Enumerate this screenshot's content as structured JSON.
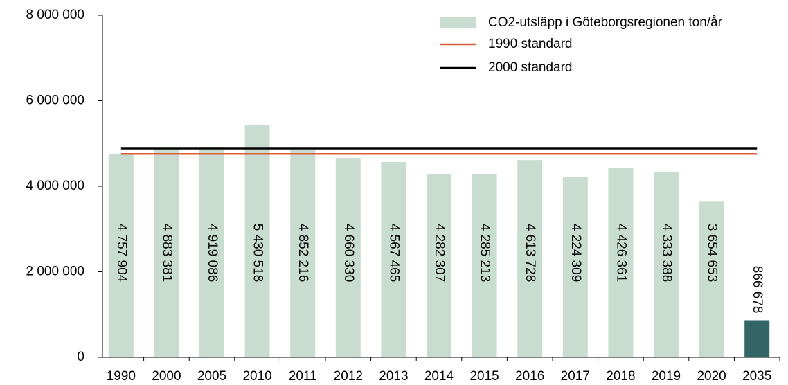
{
  "chart_data": {
    "type": "bar",
    "categories": [
      "1990",
      "2000",
      "2005",
      "2010",
      "2011",
      "2012",
      "2013",
      "2014",
      "2015",
      "2016",
      "2017",
      "2018",
      "2019",
      "2020",
      "2035"
    ],
    "series": [
      {
        "name": "CO2-utsläpp i Göteborgsregionen ton/år",
        "type": "bar",
        "color": "#c8ddd0",
        "colors": [
          "#c8ddd0",
          "#c8ddd0",
          "#c8ddd0",
          "#c8ddd0",
          "#c8ddd0",
          "#c8ddd0",
          "#c8ddd0",
          "#c8ddd0",
          "#c8ddd0",
          "#c8ddd0",
          "#c8ddd0",
          "#c8ddd0",
          "#c8ddd0",
          "#c8ddd0",
          "#336466"
        ],
        "values": [
          4757904,
          4883381,
          4919086,
          5430518,
          4852216,
          4660330,
          4567465,
          4282307,
          4285213,
          4613728,
          4224309,
          4426361,
          4333388,
          3654653,
          866678
        ],
        "value_labels": [
          "4 757 904",
          "4 883 381",
          "4 919 086",
          "5 430 518",
          "4 852 216",
          "4 660 330",
          "4 567 465",
          "4 282 307",
          "4 285 213",
          "4 613 728",
          "4 224 309",
          "4 426 361",
          "4 333 388",
          "3 654 653",
          "866 678"
        ]
      },
      {
        "name": "1990 standard",
        "type": "line",
        "color": "#d9603b",
        "values": [
          4757904,
          4757904,
          4757904,
          4757904,
          4757904,
          4757904,
          4757904,
          4757904,
          4757904,
          4757904,
          4757904,
          4757904,
          4757904,
          4757904,
          4757904
        ]
      },
      {
        "name": "2000 standard",
        "type": "line",
        "color": "#000000",
        "values": [
          4883381,
          4883381,
          4883381,
          4883381,
          4883381,
          4883381,
          4883381,
          4883381,
          4883381,
          4883381,
          4883381,
          4883381,
          4883381,
          4883381,
          4883381
        ]
      }
    ],
    "ylim": [
      0,
      8000000
    ],
    "yticks": [
      0,
      {
        "value": 2000000,
        "label": "2 000 000"
      },
      {
        "value": 4000000,
        "label": "4 000 000"
      },
      {
        "value": 6000000,
        "label": "6 000 000"
      },
      {
        "value": 8000000,
        "label": "8 000 000"
      }
    ],
    "legend": "top-right"
  }
}
